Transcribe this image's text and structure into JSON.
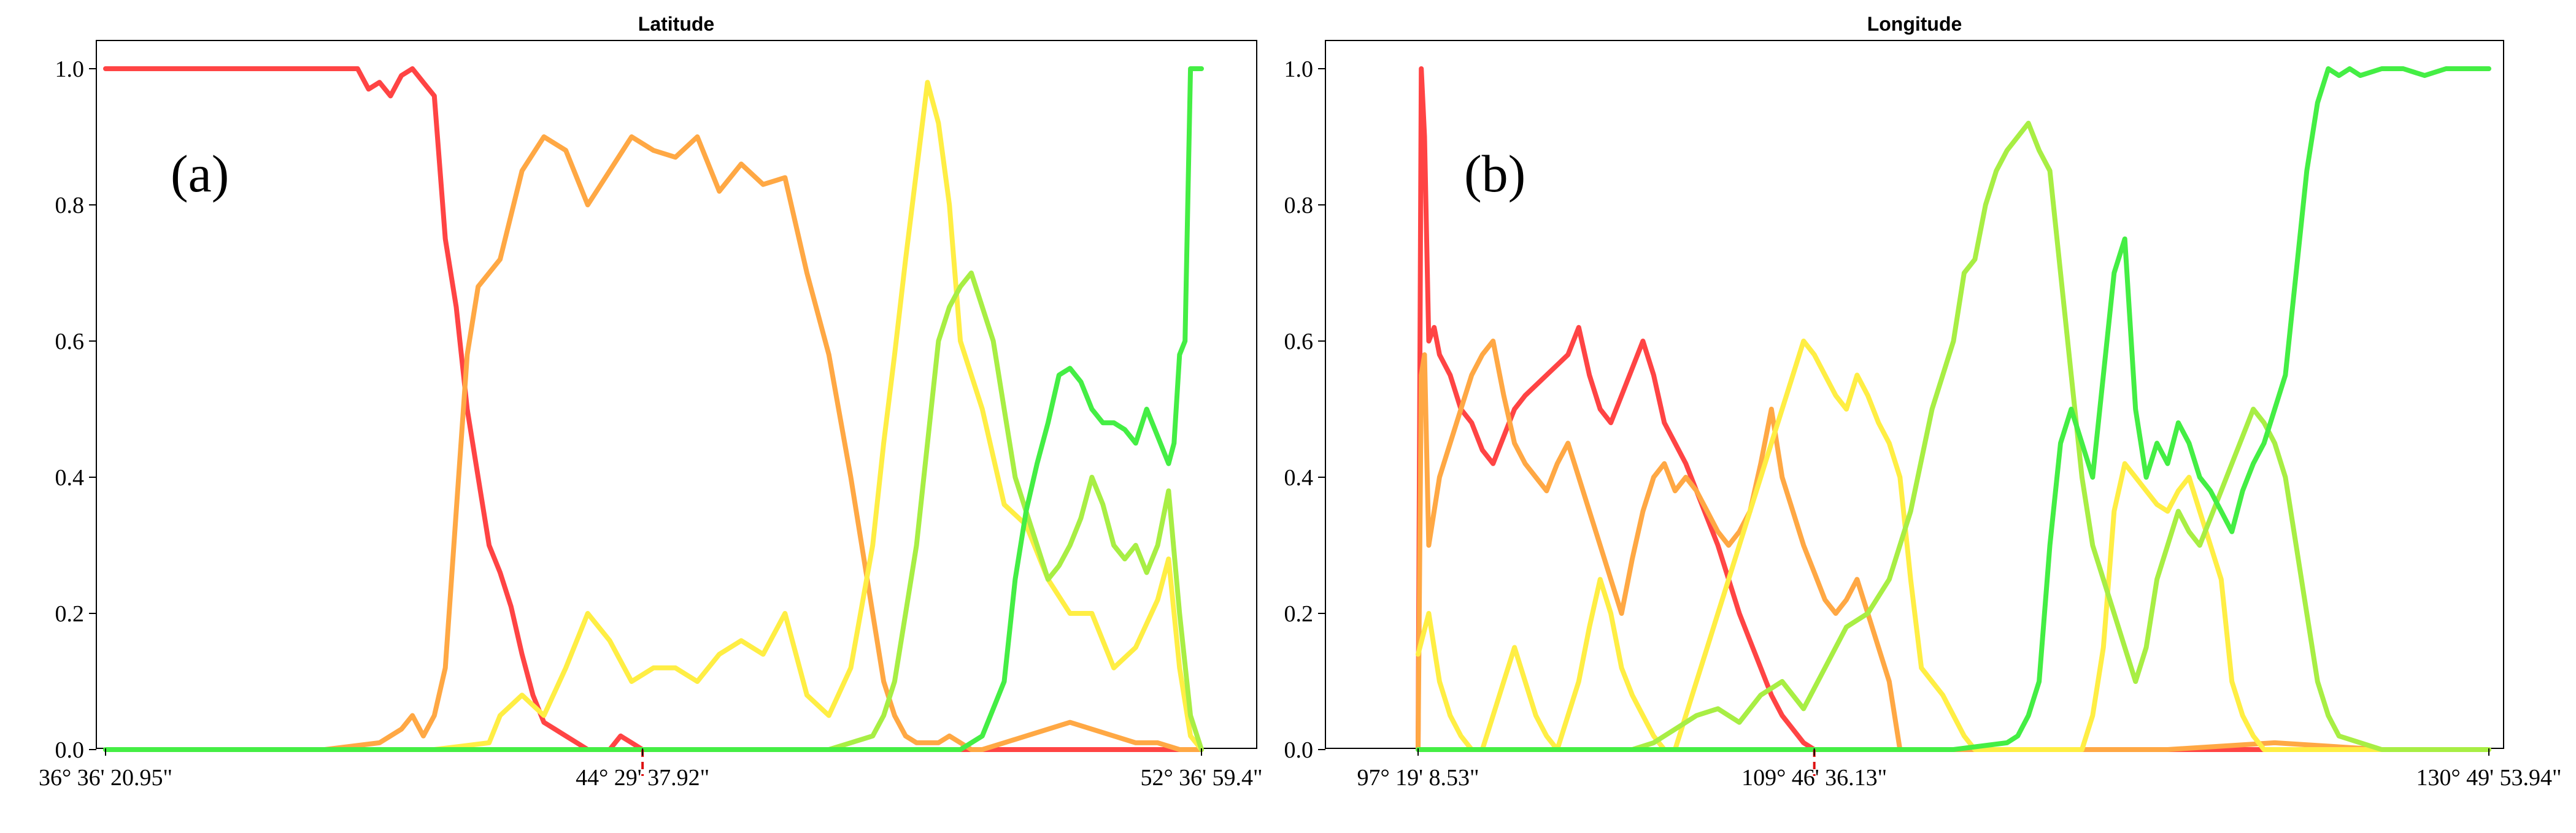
{
  "chart_data": [
    {
      "type": "line",
      "title": "Latitude",
      "panel_label": "(a)",
      "xlabel": "",
      "ylabel": "",
      "xlim": [
        0,
        100
      ],
      "ylim": [
        0.0,
        1.0
      ],
      "yticks": [
        "0.0",
        "0.2",
        "0.4",
        "0.6",
        "0.8",
        "1.0"
      ],
      "xticks": [
        {
          "at": 0,
          "label": "36° 36' 20.95\""
        },
        {
          "at": 49,
          "label": "44° 29' 37.92\""
        },
        {
          "at": 100,
          "label": "52° 36' 59.4\""
        }
      ],
      "marker": {
        "x": 49,
        "y": 0.0
      },
      "grid": false,
      "series": [
        {
          "color": "#ff4444",
          "x": [
            0,
            5,
            10,
            15,
            20,
            22,
            23,
            24,
            25,
            26,
            27,
            28,
            29,
            30,
            31,
            32,
            33,
            34,
            35,
            36,
            37,
            38,
            39,
            40,
            41,
            42,
            43,
            44,
            45,
            46,
            47,
            48,
            49,
            50,
            60,
            70,
            80,
            90,
            100
          ],
          "values": [
            1.0,
            1.0,
            1.0,
            1.0,
            1.0,
            1.0,
            1.0,
            0.97,
            0.98,
            0.96,
            0.99,
            1.0,
            0.98,
            0.96,
            0.75,
            0.65,
            0.5,
            0.4,
            0.3,
            0.26,
            0.21,
            0.14,
            0.08,
            0.04,
            0.03,
            0.02,
            0.01,
            0.0,
            0.0,
            0.0,
            0.02,
            0.01,
            0.0,
            0.0,
            0.0,
            0.0,
            0.0,
            0.0,
            0.0
          ]
        },
        {
          "color": "#ffa844",
          "x": [
            0,
            10,
            20,
            25,
            27,
            28,
            29,
            30,
            31,
            32,
            33,
            34,
            35,
            36,
            38,
            40,
            42,
            44,
            46,
            48,
            50,
            52,
            54,
            56,
            58,
            60,
            62,
            64,
            66,
            68,
            70,
            71,
            72,
            73,
            74,
            75,
            76,
            77,
            78,
            79,
            80,
            82,
            84,
            86,
            88,
            90,
            92,
            94,
            96,
            98,
            100
          ],
          "values": [
            0.0,
            0.0,
            0.0,
            0.01,
            0.03,
            0.05,
            0.02,
            0.05,
            0.12,
            0.35,
            0.58,
            0.68,
            0.7,
            0.72,
            0.85,
            0.9,
            0.88,
            0.8,
            0.85,
            0.9,
            0.88,
            0.87,
            0.9,
            0.82,
            0.86,
            0.83,
            0.84,
            0.7,
            0.58,
            0.4,
            0.2,
            0.1,
            0.05,
            0.02,
            0.01,
            0.01,
            0.01,
            0.02,
            0.01,
            0.0,
            0.0,
            0.01,
            0.02,
            0.03,
            0.04,
            0.03,
            0.02,
            0.01,
            0.01,
            0.0,
            0.0
          ]
        },
        {
          "color": "#ffee44",
          "x": [
            0,
            10,
            20,
            30,
            35,
            36,
            38,
            40,
            42,
            44,
            46,
            48,
            50,
            52,
            54,
            56,
            58,
            60,
            62,
            64,
            66,
            68,
            70,
            71,
            72,
            73,
            74,
            75,
            76,
            77,
            78,
            80,
            82,
            84,
            86,
            88,
            90,
            92,
            94,
            96,
            97,
            98,
            99,
            100
          ],
          "values": [
            0.0,
            0.0,
            0.0,
            0.0,
            0.01,
            0.05,
            0.08,
            0.05,
            0.12,
            0.2,
            0.16,
            0.1,
            0.12,
            0.12,
            0.1,
            0.14,
            0.16,
            0.14,
            0.2,
            0.08,
            0.05,
            0.12,
            0.3,
            0.45,
            0.58,
            0.72,
            0.85,
            0.98,
            0.92,
            0.8,
            0.6,
            0.5,
            0.36,
            0.33,
            0.25,
            0.2,
            0.2,
            0.12,
            0.15,
            0.22,
            0.28,
            0.12,
            0.02,
            0.0
          ]
        },
        {
          "color": "#a8ee44",
          "x": [
            0,
            10,
            20,
            30,
            40,
            50,
            60,
            66,
            68,
            70,
            71,
            72,
            73,
            74,
            75,
            76,
            77,
            78,
            79,
            80,
            81,
            82,
            83,
            84,
            85,
            86,
            87,
            88,
            89,
            90,
            91,
            92,
            93,
            94,
            95,
            96,
            97,
            98,
            99,
            100
          ],
          "values": [
            0.0,
            0.0,
            0.0,
            0.0,
            0.0,
            0.0,
            0.0,
            0.0,
            0.01,
            0.02,
            0.05,
            0.1,
            0.2,
            0.3,
            0.45,
            0.6,
            0.65,
            0.68,
            0.7,
            0.65,
            0.6,
            0.5,
            0.4,
            0.35,
            0.3,
            0.25,
            0.27,
            0.3,
            0.34,
            0.4,
            0.36,
            0.3,
            0.28,
            0.3,
            0.26,
            0.3,
            0.38,
            0.2,
            0.05,
            0.0
          ]
        },
        {
          "color": "#44ee44",
          "x": [
            0,
            10,
            20,
            30,
            40,
            50,
            60,
            70,
            78,
            80,
            82,
            83,
            84,
            85,
            86,
            87,
            88,
            89,
            90,
            91,
            92,
            93,
            94,
            95,
            96,
            97,
            97.5,
            98,
            98.5,
            99,
            100
          ],
          "values": [
            0.0,
            0.0,
            0.0,
            0.0,
            0.0,
            0.0,
            0.0,
            0.0,
            0.0,
            0.02,
            0.1,
            0.25,
            0.35,
            0.42,
            0.48,
            0.55,
            0.56,
            0.54,
            0.5,
            0.48,
            0.48,
            0.47,
            0.45,
            0.5,
            0.46,
            0.42,
            0.45,
            0.58,
            0.6,
            1.0,
            1.0
          ]
        }
      ]
    },
    {
      "type": "line",
      "title": "Longitude",
      "panel_label": "(b)",
      "xlabel": "",
      "ylabel": "",
      "xlim": [
        0,
        100
      ],
      "ylim": [
        0.0,
        1.0
      ],
      "yticks": [
        "0.0",
        "0.2",
        "0.4",
        "0.6",
        "0.8",
        "1.0"
      ],
      "xticks": [
        {
          "at": 0,
          "label": "97° 19' 8.53\""
        },
        {
          "at": 37,
          "label": "109° 46' 36.13\""
        },
        {
          "at": 100,
          "label": "130° 49' 53.94\""
        }
      ],
      "marker": {
        "x": 37,
        "y": 0.0
      },
      "grid": false,
      "series": [
        {
          "color": "#ff4444",
          "x": [
            0,
            0.3,
            0.6,
            1,
            1.5,
            2,
            3,
            4,
            5,
            6,
            7,
            8,
            9,
            10,
            12,
            14,
            15,
            16,
            17,
            18,
            19,
            20,
            21,
            22,
            23,
            24,
            25,
            26,
            27,
            28,
            29,
            30,
            31,
            32,
            33,
            34,
            35,
            36,
            37,
            38,
            50,
            60,
            70,
            80,
            90,
            100
          ],
          "values": [
            0.0,
            1.0,
            0.9,
            0.6,
            0.62,
            0.58,
            0.55,
            0.5,
            0.48,
            0.44,
            0.42,
            0.46,
            0.5,
            0.52,
            0.55,
            0.58,
            0.62,
            0.55,
            0.5,
            0.48,
            0.52,
            0.56,
            0.6,
            0.55,
            0.48,
            0.45,
            0.42,
            0.38,
            0.34,
            0.3,
            0.25,
            0.2,
            0.16,
            0.12,
            0.08,
            0.05,
            0.03,
            0.01,
            0.0,
            0.0,
            0.0,
            0.0,
            0.0,
            0.0,
            0.0,
            0.0
          ]
        },
        {
          "color": "#ffa844",
          "x": [
            0,
            0.3,
            0.6,
            1,
            2,
            3,
            4,
            5,
            6,
            7,
            8,
            9,
            10,
            11,
            12,
            13,
            14,
            15,
            16,
            17,
            18,
            19,
            20,
            21,
            22,
            23,
            24,
            25,
            26,
            27,
            28,
            29,
            30,
            31,
            32,
            33,
            34,
            35,
            36,
            37,
            38,
            39,
            40,
            41,
            42,
            43,
            44,
            45,
            50,
            60,
            70,
            80,
            90,
            100
          ],
          "values": [
            0.0,
            0.55,
            0.58,
            0.3,
            0.4,
            0.45,
            0.5,
            0.55,
            0.58,
            0.6,
            0.52,
            0.45,
            0.42,
            0.4,
            0.38,
            0.42,
            0.45,
            0.4,
            0.35,
            0.3,
            0.25,
            0.2,
            0.28,
            0.35,
            0.4,
            0.42,
            0.38,
            0.4,
            0.38,
            0.35,
            0.32,
            0.3,
            0.32,
            0.35,
            0.42,
            0.5,
            0.4,
            0.35,
            0.3,
            0.26,
            0.22,
            0.2,
            0.22,
            0.25,
            0.2,
            0.15,
            0.1,
            0.0,
            0.0,
            0.0,
            0.0,
            0.01,
            0.0,
            0.0
          ]
        },
        {
          "color": "#ffee44",
          "x": [
            0,
            1,
            2,
            3,
            4,
            5,
            6,
            7,
            8,
            9,
            10,
            11,
            12,
            13,
            14,
            15,
            16,
            17,
            18,
            19,
            20,
            21,
            22,
            23,
            24,
            25,
            26,
            27,
            28,
            29,
            30,
            31,
            32,
            33,
            34,
            35,
            36,
            37,
            38,
            39,
            40,
            41,
            42,
            43,
            44,
            45,
            46,
            47,
            48,
            49,
            50,
            51,
            52,
            53,
            54,
            55,
            56,
            57,
            58,
            59,
            60,
            61,
            62,
            63,
            64,
            65,
            66,
            67,
            68,
            69,
            70,
            71,
            72,
            73,
            74,
            75,
            76,
            77,
            78,
            79,
            80,
            85,
            90,
            95,
            100
          ],
          "values": [
            0.14,
            0.2,
            0.1,
            0.05,
            0.02,
            0.0,
            0.0,
            0.05,
            0.1,
            0.15,
            0.1,
            0.05,
            0.02,
            0.0,
            0.05,
            0.1,
            0.18,
            0.25,
            0.2,
            0.12,
            0.08,
            0.05,
            0.02,
            0.0,
            0.0,
            0.05,
            0.1,
            0.15,
            0.2,
            0.25,
            0.3,
            0.35,
            0.4,
            0.45,
            0.5,
            0.55,
            0.6,
            0.58,
            0.55,
            0.52,
            0.5,
            0.55,
            0.52,
            0.48,
            0.45,
            0.4,
            0.25,
            0.12,
            0.1,
            0.08,
            0.05,
            0.02,
            0.0,
            0.0,
            0.0,
            0.0,
            0.0,
            0.0,
            0.0,
            0.0,
            0.0,
            0.0,
            0.0,
            0.05,
            0.15,
            0.35,
            0.42,
            0.4,
            0.38,
            0.36,
            0.35,
            0.38,
            0.4,
            0.35,
            0.3,
            0.25,
            0.1,
            0.05,
            0.02,
            0.0,
            0.0,
            0.0,
            0.0,
            0.0,
            0.0
          ]
        },
        {
          "color": "#a8ee44",
          "x": [
            0,
            10,
            20,
            22,
            24,
            26,
            28,
            30,
            32,
            34,
            36,
            38,
            40,
            42,
            44,
            46,
            48,
            50,
            51,
            52,
            53,
            54,
            55,
            56,
            57,
            58,
            59,
            60,
            61,
            62,
            63,
            64,
            65,
            66,
            67,
            68,
            69,
            70,
            71,
            72,
            73,
            74,
            75,
            76,
            77,
            78,
            79,
            80,
            81,
            82,
            83,
            84,
            85,
            86,
            88,
            90,
            95,
            100
          ],
          "values": [
            0.0,
            0.0,
            0.0,
            0.01,
            0.03,
            0.05,
            0.06,
            0.04,
            0.08,
            0.1,
            0.06,
            0.12,
            0.18,
            0.2,
            0.25,
            0.35,
            0.5,
            0.6,
            0.7,
            0.72,
            0.8,
            0.85,
            0.88,
            0.9,
            0.92,
            0.88,
            0.85,
            0.7,
            0.55,
            0.4,
            0.3,
            0.25,
            0.2,
            0.15,
            0.1,
            0.15,
            0.25,
            0.3,
            0.35,
            0.32,
            0.3,
            0.34,
            0.38,
            0.42,
            0.46,
            0.5,
            0.48,
            0.45,
            0.4,
            0.3,
            0.2,
            0.1,
            0.05,
            0.02,
            0.01,
            0.0,
            0.0,
            0.0
          ]
        },
        {
          "color": "#44ee44",
          "x": [
            0,
            10,
            20,
            30,
            40,
            50,
            55,
            56,
            57,
            58,
            59,
            60,
            61,
            62,
            63,
            64,
            65,
            66,
            67,
            68,
            69,
            70,
            71,
            72,
            73,
            74,
            75,
            76,
            77,
            78,
            79,
            80,
            81,
            82,
            83,
            84,
            85,
            86,
            87,
            88,
            90,
            92,
            94,
            96,
            98,
            100
          ],
          "values": [
            0.0,
            0.0,
            0.0,
            0.0,
            0.0,
            0.0,
            0.01,
            0.02,
            0.05,
            0.1,
            0.3,
            0.45,
            0.5,
            0.45,
            0.4,
            0.55,
            0.7,
            0.75,
            0.5,
            0.4,
            0.45,
            0.42,
            0.48,
            0.45,
            0.4,
            0.38,
            0.35,
            0.32,
            0.38,
            0.42,
            0.45,
            0.5,
            0.55,
            0.7,
            0.85,
            0.95,
            1.0,
            0.99,
            1.0,
            0.99,
            1.0,
            1.0,
            0.99,
            1.0,
            1.0,
            1.0
          ]
        }
      ]
    }
  ]
}
